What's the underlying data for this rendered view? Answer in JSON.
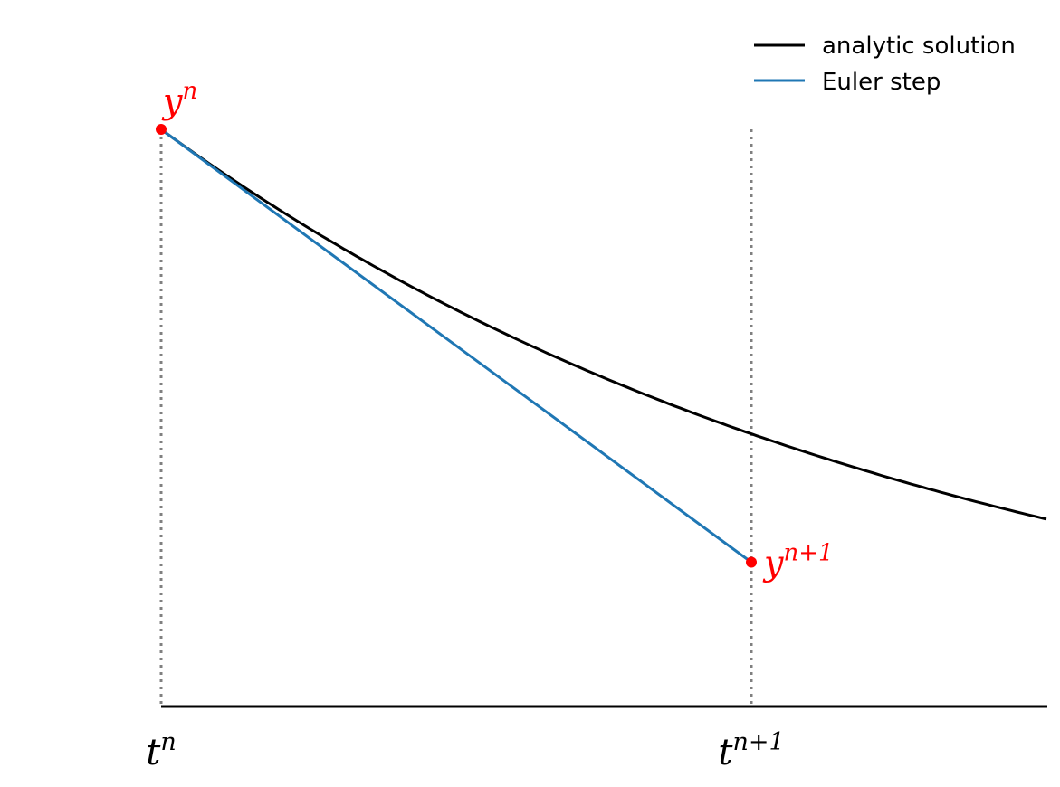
{
  "chart_data": {
    "type": "line",
    "title": "",
    "xlabel": "",
    "ylabel": "",
    "xlim": [
      0,
      1.5
    ],
    "ylim": [
      0,
      1
    ],
    "grid": false,
    "legend_placement": "top-right",
    "x_ticks": [
      {
        "value": 0,
        "base": "t",
        "sup": "n"
      },
      {
        "value": 1,
        "base": "t",
        "sup": "n+1"
      }
    ],
    "series": [
      {
        "name": "analytic solution",
        "function": "y = exp(-0.75 t)",
        "color": "#000000"
      },
      {
        "name": "Euler step",
        "x": [
          0,
          1
        ],
        "y": [
          1,
          0.25
        ],
        "color": "#1f77b4"
      }
    ],
    "points": [
      {
        "x": 0,
        "y": 1,
        "base": "y",
        "sup": "n",
        "color": "#ff0000"
      },
      {
        "x": 1,
        "y": 0.25,
        "base": "y",
        "sup": "n+1",
        "color": "#ff0000"
      }
    ],
    "guide_lines": [
      {
        "x": 0,
        "style": "dotted",
        "color": "#808080"
      },
      {
        "x": 1,
        "style": "dotted",
        "color": "#808080"
      }
    ]
  }
}
